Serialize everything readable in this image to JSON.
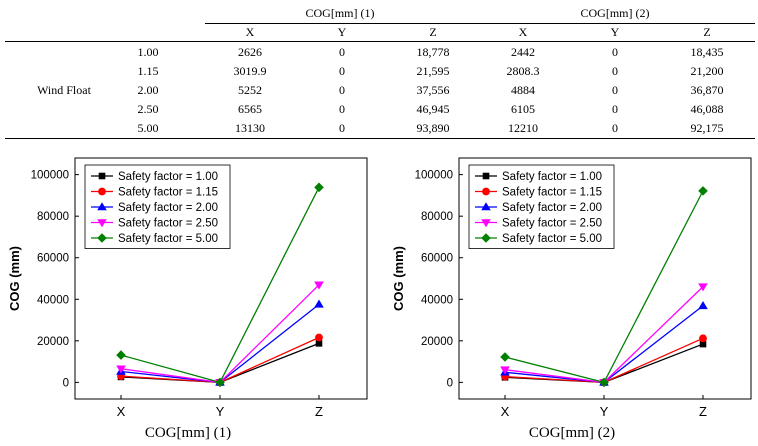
{
  "table": {
    "group_headers": [
      "COG[mm] (1)",
      "COG[mm] (2)"
    ],
    "column_headers": [
      "X",
      "Y",
      "Z",
      "X",
      "Y",
      "Z"
    ],
    "row_group_label": "Wind Float",
    "rows": [
      {
        "factor": "1.00",
        "values": [
          "2626",
          "0",
          "18,778",
          "2442",
          "0",
          "18,435"
        ]
      },
      {
        "factor": "1.15",
        "values": [
          "3019.9",
          "0",
          "21,595",
          "2808.3",
          "0",
          "21,200"
        ]
      },
      {
        "factor": "2.00",
        "values": [
          "5252",
          "0",
          "37,556",
          "4884",
          "0",
          "36,870"
        ]
      },
      {
        "factor": "2.50",
        "values": [
          "6565",
          "0",
          "46,945",
          "6105",
          "0",
          "46,088"
        ]
      },
      {
        "factor": "5.00",
        "values": [
          "13130",
          "0",
          "93,890",
          "12210",
          "0",
          "92,175"
        ]
      }
    ]
  },
  "chart_data": [
    {
      "type": "line",
      "caption": "COG[mm]  (1)",
      "ylabel": "COG (mm)",
      "xlabel": "",
      "categories": [
        "X",
        "Y",
        "Z"
      ],
      "ylim": [
        -8000,
        108000
      ],
      "yticks": [
        0,
        20000,
        40000,
        60000,
        80000,
        100000
      ],
      "legend_position": "top-left",
      "series": [
        {
          "name": "Safety factor = 1.00",
          "color": "#000000",
          "marker": "square",
          "values": [
            2626,
            0,
            18778
          ]
        },
        {
          "name": "Safety factor = 1.15",
          "color": "#ff0000",
          "marker": "circle",
          "values": [
            3019.9,
            0,
            21595
          ]
        },
        {
          "name": "Safety factor = 2.00",
          "color": "#0000ff",
          "marker": "triangle-up",
          "values": [
            5252,
            0,
            37556
          ]
        },
        {
          "name": "Safety factor = 2.50",
          "color": "#ff00ff",
          "marker": "triangle-down",
          "values": [
            6565,
            0,
            46945
          ]
        },
        {
          "name": "Safety factor = 5.00",
          "color": "#008000",
          "marker": "diamond",
          "values": [
            13130,
            0,
            93890
          ]
        }
      ]
    },
    {
      "type": "line",
      "caption": "COG[mm]  (2)",
      "ylabel": "COG (mm)",
      "xlabel": "",
      "categories": [
        "X",
        "Y",
        "Z"
      ],
      "ylim": [
        -8000,
        108000
      ],
      "yticks": [
        0,
        20000,
        40000,
        60000,
        80000,
        100000
      ],
      "legend_position": "top-left",
      "series": [
        {
          "name": "Safety factor = 1.00",
          "color": "#000000",
          "marker": "square",
          "values": [
            2442,
            0,
            18435
          ]
        },
        {
          "name": "Safety factor = 1.15",
          "color": "#ff0000",
          "marker": "circle",
          "values": [
            2808.3,
            0,
            21200
          ]
        },
        {
          "name": "Safety factor = 2.00",
          "color": "#0000ff",
          "marker": "triangle-up",
          "values": [
            4884,
            0,
            36870
          ]
        },
        {
          "name": "Safety factor = 2.50",
          "color": "#ff00ff",
          "marker": "triangle-down",
          "values": [
            6105,
            0,
            46088
          ]
        },
        {
          "name": "Safety factor = 5.00",
          "color": "#008000",
          "marker": "diamond",
          "values": [
            12210,
            0,
            92175
          ]
        }
      ]
    }
  ]
}
